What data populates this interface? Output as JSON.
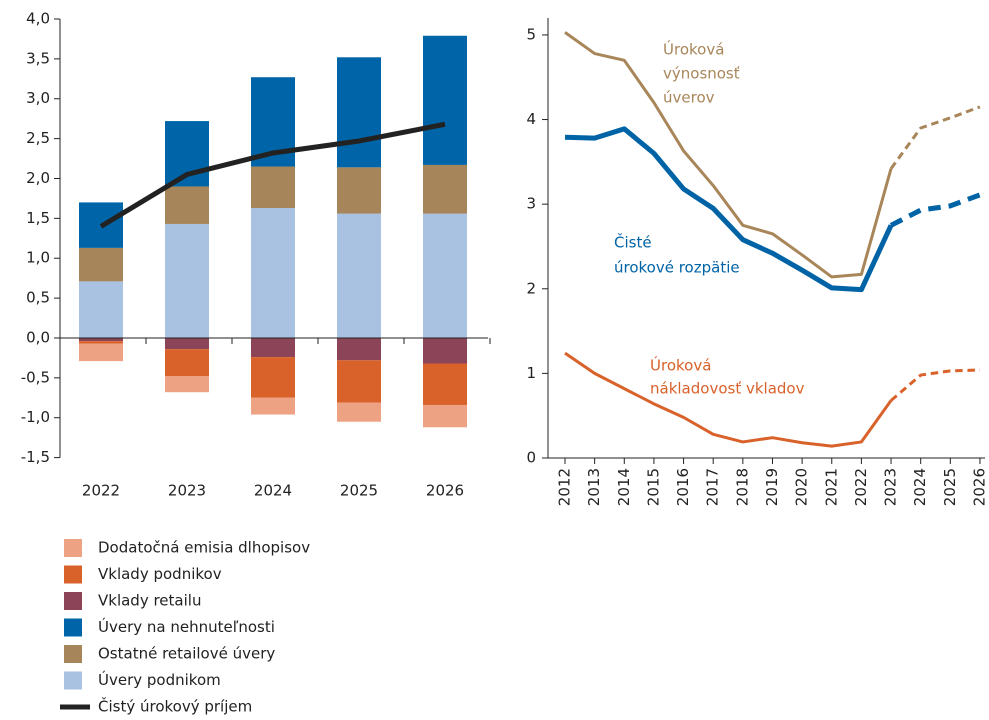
{
  "chart_data": [
    {
      "type": "bar",
      "categories": [
        "2022",
        "2023",
        "2024",
        "2025",
        "2026"
      ],
      "ylim": [
        -1.5,
        4.0
      ],
      "yticks": [
        {
          "value": -1.5,
          "label": "-1,5"
        },
        {
          "value": -1.0,
          "label": "-1,0"
        },
        {
          "value": -0.5,
          "label": "-0,5"
        },
        {
          "value": 0,
          "label": "0,0"
        },
        {
          "value": 0.5,
          "label": "0,5"
        },
        {
          "value": 1.0,
          "label": "1,0"
        },
        {
          "value": 1.5,
          "label": "1,5"
        },
        {
          "value": 2.0,
          "label": "2,0"
        },
        {
          "value": 2.5,
          "label": "2,5"
        },
        {
          "value": 3.0,
          "label": "3,0"
        },
        {
          "value": 3.5,
          "label": "3,5"
        },
        {
          "value": 4.0,
          "label": "4,0"
        }
      ],
      "series": [
        {
          "name": "Dodatočná emisia dlhopisov",
          "color": "#eca283",
          "values": [
            -0.22,
            -0.2,
            -0.21,
            -0.24,
            -0.28
          ]
        },
        {
          "name": "Vklady podnikov",
          "color": "#d9612a",
          "values": [
            -0.03,
            -0.34,
            -0.51,
            -0.53,
            -0.52
          ]
        },
        {
          "name": "Vklady retailu",
          "color": "#8c4459",
          "values": [
            -0.04,
            -0.14,
            -0.24,
            -0.28,
            -0.32
          ]
        },
        {
          "name": "Úvery na nehnuteľnosti",
          "color": "#0065a8",
          "values": [
            0.57,
            0.82,
            1.12,
            1.38,
            1.62
          ]
        },
        {
          "name": "Ostatné retailové úvery",
          "color": "#a6855a",
          "values": [
            0.42,
            0.47,
            0.52,
            0.58,
            0.61
          ]
        },
        {
          "name": "Úvery podnikom",
          "color": "#a9c2e1",
          "values": [
            0.71,
            1.43,
            1.63,
            1.56,
            1.56
          ]
        },
        {
          "name": "Čistý úrokový príjem",
          "color": "#222222",
          "type": "line",
          "values": [
            1.4,
            2.05,
            2.32,
            2.47,
            2.68
          ]
        }
      ]
    },
    {
      "type": "line",
      "categories": [
        "2012",
        "2013",
        "2014",
        "2015",
        "2016",
        "2017",
        "2018",
        "2019",
        "2020",
        "2021",
        "2022",
        "2023",
        "2024",
        "2025",
        "2026"
      ],
      "forecast_from": "2023",
      "ylim": [
        0,
        5.2
      ],
      "yticks": [
        0,
        1,
        2,
        3,
        4,
        5
      ],
      "series": [
        {
          "label": [
            "Úroková",
            "výnosnosť",
            "úverov"
          ],
          "color": "#a8865a",
          "width": 3,
          "values": [
            5.03,
            4.78,
            4.7,
            4.2,
            3.63,
            3.22,
            2.75,
            2.65,
            2.4,
            2.14,
            2.17,
            3.42,
            3.9,
            4.02,
            4.15
          ]
        },
        {
          "label": [
            "Čisté",
            "úrokové rozpätie"
          ],
          "color": "#0063a6",
          "width": 5,
          "values": [
            3.79,
            3.78,
            3.89,
            3.6,
            3.18,
            2.95,
            2.58,
            2.42,
            2.22,
            2.01,
            1.99,
            2.75,
            2.93,
            2.98,
            3.11
          ]
        },
        {
          "label": [
            "Úroková",
            "nákladovosť vkladov"
          ],
          "color": "#d9612a",
          "width": 3,
          "values": [
            1.24,
            1.0,
            0.82,
            0.64,
            0.48,
            0.28,
            0.19,
            0.24,
            0.18,
            0.14,
            0.19,
            0.68,
            0.98,
            1.03,
            1.04
          ]
        }
      ]
    }
  ]
}
